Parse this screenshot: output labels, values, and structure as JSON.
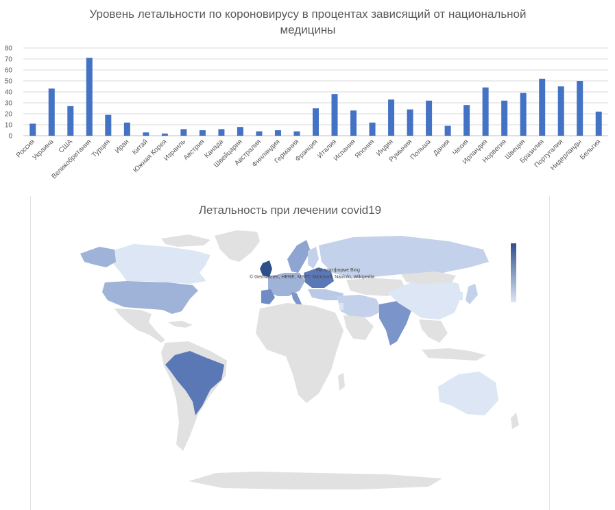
{
  "chart_data": [
    {
      "type": "bar",
      "title": "Уровень летальности  по короновирусу в процентах зависящий от национальной медицины",
      "title_lines": [
        "Уровень летальности  по короновирусу в процентах зависящий от национальной",
        "медицины"
      ],
      "categories": [
        "Россия",
        "Украина",
        "США",
        "Великобритания",
        "Турция",
        "Иран",
        "Китай",
        "Южная Корея",
        "Израиль",
        "Австрия",
        "Канада",
        "Швейцария",
        "Австралия",
        "Финляндия",
        "Германия",
        "Франция",
        "Италия",
        "Испания",
        "Япония",
        "Индия",
        "Румыния",
        "Польша",
        "Дания",
        "Чехия",
        "Ирландия",
        "Норвегия",
        "Швеция",
        "Бразилия",
        "Португалия",
        "Нидерланды",
        "Бельгия"
      ],
      "values": [
        11,
        43,
        27,
        71,
        19,
        12,
        3,
        2,
        6,
        5,
        6,
        8,
        4,
        5,
        4,
        25,
        38,
        23,
        12,
        33,
        24,
        32,
        9,
        28,
        44,
        32,
        39,
        52,
        45,
        50,
        22
      ],
      "ylim": [
        0,
        80
      ],
      "yticks": [
        0,
        10,
        20,
        30,
        40,
        50,
        60,
        70,
        80
      ],
      "grid": true,
      "bar_color": "#4472c4"
    },
    {
      "type": "map",
      "title": "Летальность при лечении covid19",
      "attribution_line1": "На платформе Bing",
      "attribution_line2": "© GeoNames, HERE, MSFT, Microsoft, Navinfo, Wikipedia",
      "color_scale": [
        "#dce6f4",
        "#2f4f8a"
      ],
      "land_no_data_color": "#e1e1e1"
    }
  ]
}
